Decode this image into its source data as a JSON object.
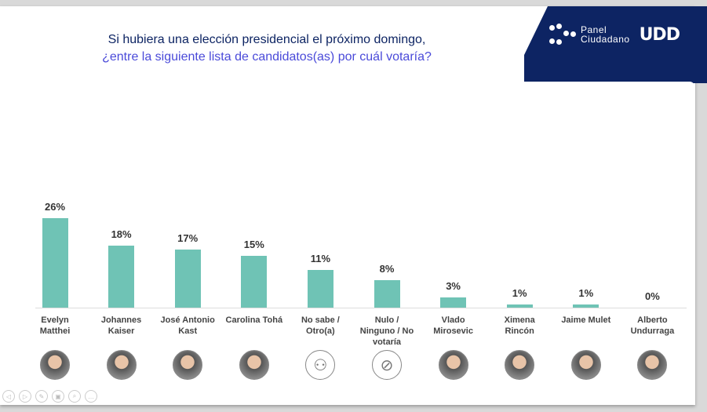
{
  "title": {
    "line1": "Si hubiera una elección presidencial el próximo domingo,",
    "line2": "¿entre la siguiente lista de candidatos(as) por cuál votaría?"
  },
  "logo": {
    "panel": "Panel",
    "ciudadano": "Ciudadano",
    "brand": "UDD"
  },
  "colors": {
    "bar": "#6fc3b5",
    "navy": "#0d2463",
    "subtitle": "#4a4ad9"
  },
  "chart_data": {
    "type": "bar",
    "categories": [
      "Evelyn Matthei",
      "Johannes Kaiser",
      "José Antonio Kast",
      "Carolina Tohá",
      "No sabe / Otro(a)",
      "Nulo / Ninguno / No votaría",
      "Vlado Mirosevic",
      "Ximena Rincón",
      "Jaime Mulet",
      "Alberto Undurraga"
    ],
    "values": [
      26,
      18,
      17,
      15,
      11,
      8,
      3,
      1,
      1,
      0
    ],
    "labels": [
      "26%",
      "18%",
      "17%",
      "15%",
      "11%",
      "8%",
      "3%",
      "1%",
      "1%",
      "0%"
    ],
    "grid": false,
    "ylim": [
      0,
      30
    ]
  },
  "names": [
    [
      "Evelyn",
      "Matthei"
    ],
    [
      "Johannes",
      "Kaiser"
    ],
    [
      "José Antonio",
      "Kast"
    ],
    [
      "Carolina Tohá"
    ],
    [
      "No sabe /",
      "Otro(a)"
    ],
    [
      "Nulo /",
      "Ninguno / No",
      "votaría"
    ],
    [
      "Vlado",
      "Mirosevic"
    ],
    [
      "Ximena",
      "Rincón"
    ],
    [
      "Jaime Mulet"
    ],
    [
      "Alberto",
      "Undurraga"
    ]
  ],
  "icons": [
    "avatar",
    "avatar",
    "avatar",
    "avatar",
    "people-target-icon",
    "prohibited-icon",
    "avatar",
    "avatar",
    "avatar",
    "avatar"
  ],
  "controls": [
    "previous-icon",
    "next-icon",
    "pen-icon",
    "slides-icon",
    "zoom-icon",
    "more-icon"
  ]
}
